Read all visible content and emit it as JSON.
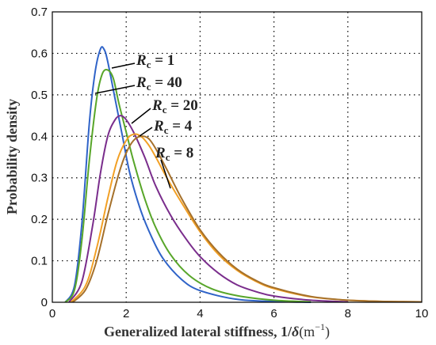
{
  "chart_data": {
    "type": "line",
    "xlabel_text": "Generalized lateral stiffness, 1/",
    "xlabel_delta": "δ",
    "xlabel_unit": "(m",
    "xlabel_exp": "−1",
    "xlabel_close": ")",
    "ylabel": "Probability density",
    "xlim": [
      0,
      10
    ],
    "ylim": [
      0,
      0.7
    ],
    "xticks": [
      "0",
      "2",
      "4",
      "6",
      "8",
      "10"
    ],
    "yticks": [
      "0",
      "0.1",
      "0.2",
      "0.3",
      "0.4",
      "0.5",
      "0.6",
      "0.7"
    ],
    "grid": true,
    "series": [
      {
        "name": "Rc = 1",
        "color": "#2f63c8",
        "x": [
          0.35,
          0.6,
          0.8,
          1.0,
          1.15,
          1.3,
          1.4,
          1.5,
          1.7,
          1.9,
          2.1,
          2.4,
          2.7,
          3.0,
          3.5,
          4.0,
          5.0,
          6.0,
          7.0
        ],
        "y": [
          0,
          0.04,
          0.19,
          0.43,
          0.55,
          0.61,
          0.61,
          0.58,
          0.49,
          0.4,
          0.31,
          0.22,
          0.155,
          0.105,
          0.055,
          0.028,
          0.007,
          0.002,
          0
        ]
      },
      {
        "name": "Rc = 40",
        "color": "#58a62a",
        "x": [
          0.35,
          0.6,
          0.8,
          1.0,
          1.2,
          1.35,
          1.5,
          1.65,
          1.8,
          2.0,
          2.2,
          2.5,
          2.8,
          3.2,
          3.7,
          4.3,
          5.0,
          6.0,
          7.0
        ],
        "y": [
          0,
          0.03,
          0.15,
          0.34,
          0.49,
          0.55,
          0.56,
          0.54,
          0.48,
          0.41,
          0.34,
          0.25,
          0.18,
          0.115,
          0.065,
          0.033,
          0.016,
          0.005,
          0.001
        ]
      },
      {
        "name": "Rc = 20",
        "color": "#7a2d8c",
        "x": [
          0.45,
          0.8,
          1.1,
          1.3,
          1.5,
          1.7,
          1.85,
          2.0,
          2.2,
          2.5,
          2.8,
          3.2,
          3.6,
          4.0,
          4.5,
          5.0,
          5.5,
          6.0,
          7.0,
          8.0
        ],
        "y": [
          0,
          0.05,
          0.19,
          0.31,
          0.4,
          0.44,
          0.45,
          0.44,
          0.41,
          0.35,
          0.28,
          0.21,
          0.155,
          0.11,
          0.07,
          0.042,
          0.026,
          0.015,
          0.005,
          0.001
        ]
      },
      {
        "name": "Rc = 4",
        "color": "#f2a025",
        "x": [
          0.5,
          0.9,
          1.2,
          1.5,
          1.75,
          2.0,
          2.2,
          2.4,
          2.6,
          2.8,
          3.1,
          3.5,
          4.0,
          4.5,
          5.0,
          5.5,
          6.0,
          7.0,
          8.0,
          9.0,
          10.0
        ],
        "y": [
          0,
          0.04,
          0.13,
          0.25,
          0.34,
          0.39,
          0.405,
          0.4,
          0.38,
          0.35,
          0.3,
          0.24,
          0.17,
          0.115,
          0.077,
          0.051,
          0.033,
          0.013,
          0.005,
          0.002,
          0.001
        ]
      },
      {
        "name": "Rc = 8",
        "color": "#a5702a",
        "x": [
          0.55,
          0.9,
          1.2,
          1.5,
          1.8,
          2.0,
          2.2,
          2.4,
          2.6,
          2.8,
          3.1,
          3.5,
          4.0,
          4.5,
          5.0,
          5.5,
          6.0,
          7.0,
          8.0,
          9.0,
          10.0
        ],
        "y": [
          0,
          0.03,
          0.1,
          0.21,
          0.31,
          0.36,
          0.39,
          0.4,
          0.395,
          0.37,
          0.32,
          0.25,
          0.175,
          0.12,
          0.08,
          0.053,
          0.035,
          0.014,
          0.005,
          0.002,
          0.001
        ]
      }
    ],
    "annotations": [
      {
        "R": "R",
        "sub": "c",
        "rest": " = 1"
      },
      {
        "R": "R",
        "sub": "c",
        "rest": " = 40"
      },
      {
        "R": "R",
        "sub": "c",
        "rest": " = 20"
      },
      {
        "R": "R",
        "sub": "c",
        "rest": " = 4"
      },
      {
        "R": "R",
        "sub": "c",
        "rest": " = 8"
      }
    ]
  }
}
